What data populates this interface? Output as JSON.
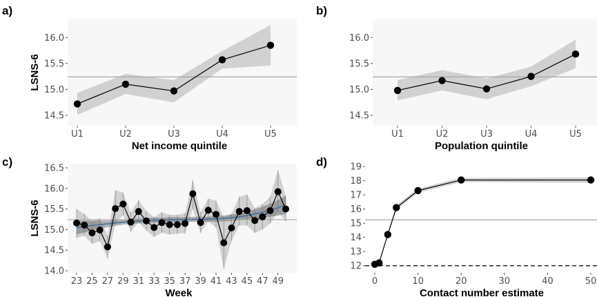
{
  "chart_data": [
    {
      "panel": "a)",
      "type": "line",
      "xlabel": "Net income quintile",
      "ylabel": "LSNS-6",
      "categories": [
        "U1",
        "U2",
        "U3",
        "U4",
        "U5"
      ],
      "values": [
        14.72,
        15.1,
        14.97,
        15.57,
        15.85
      ],
      "ci_lower": [
        14.51,
        14.91,
        14.75,
        15.4,
        15.46
      ],
      "ci_upper": [
        14.93,
        15.3,
        15.18,
        15.74,
        16.24
      ],
      "yticks": [
        14.5,
        15.0,
        15.5,
        16.0
      ],
      "ylim": [
        14.3,
        16.35
      ],
      "reference_line": 15.24
    },
    {
      "panel": "b)",
      "type": "line",
      "xlabel": "Population quintile",
      "ylabel": "",
      "categories": [
        "U1",
        "U2",
        "U3",
        "U4",
        "U5"
      ],
      "values": [
        14.98,
        15.17,
        15.01,
        15.25,
        15.68
      ],
      "ci_lower": [
        14.79,
        14.98,
        14.81,
        15.06,
        15.41
      ],
      "ci_upper": [
        15.18,
        15.37,
        15.21,
        15.44,
        15.96
      ],
      "yticks": [
        14.5,
        15.0,
        15.5,
        16.0
      ],
      "ylim": [
        14.3,
        16.35
      ],
      "reference_line": 15.24
    },
    {
      "panel": "c)",
      "type": "line",
      "xlabel": "Week",
      "ylabel": "LSNS-6",
      "x": [
        23,
        24,
        25,
        26,
        27,
        28,
        29,
        30,
        31,
        32,
        33,
        34,
        35,
        36,
        37,
        38,
        39,
        40,
        41,
        42,
        43,
        44,
        45,
        46,
        47,
        48,
        49,
        50
      ],
      "xticks": [
        23,
        25,
        27,
        29,
        31,
        33,
        35,
        37,
        39,
        41,
        43,
        45,
        47,
        49
      ],
      "values": [
        15.16,
        15.11,
        14.92,
        14.99,
        14.58,
        15.51,
        15.62,
        15.18,
        15.44,
        15.21,
        15.05,
        15.17,
        15.12,
        15.12,
        15.15,
        15.87,
        15.17,
        15.47,
        15.37,
        14.68,
        15.04,
        15.44,
        15.46,
        15.22,
        15.31,
        15.46,
        15.92,
        15.5
      ],
      "ci_lower": [
        14.8,
        14.85,
        14.65,
        14.72,
        14.3,
        15.15,
        15.35,
        14.95,
        15.18,
        14.98,
        14.82,
        14.92,
        14.88,
        14.9,
        14.91,
        15.5,
        14.92,
        15.2,
        15.05,
        14.05,
        14.72,
        15.1,
        15.1,
        14.92,
        15.0,
        15.15,
        15.42,
        15.2
      ],
      "ci_upper": [
        15.5,
        15.38,
        15.2,
        15.28,
        14.86,
        15.95,
        15.9,
        15.42,
        15.72,
        15.45,
        15.3,
        15.42,
        15.36,
        15.36,
        15.4,
        16.2,
        15.42,
        15.75,
        15.7,
        15.3,
        15.38,
        15.8,
        15.85,
        15.52,
        15.62,
        15.8,
        16.45,
        15.82
      ],
      "trend_values": [
        15.05,
        15.07,
        15.1,
        15.12,
        15.14,
        15.16,
        15.18,
        15.2,
        15.21,
        15.22,
        15.23,
        15.23,
        15.24,
        15.24,
        15.24,
        15.25,
        15.25,
        15.25,
        15.26,
        15.27,
        15.29,
        15.31,
        15.34,
        15.38,
        15.42,
        15.47,
        15.53,
        15.6
      ],
      "trend_lower": [
        14.88,
        14.93,
        14.98,
        15.02,
        15.06,
        15.09,
        15.12,
        15.14,
        15.15,
        15.16,
        15.17,
        15.17,
        15.18,
        15.18,
        15.18,
        15.19,
        15.19,
        15.19,
        15.19,
        15.2,
        15.21,
        15.23,
        15.25,
        15.27,
        15.29,
        15.31,
        15.34,
        15.38
      ],
      "trend_upper": [
        15.22,
        15.21,
        15.22,
        15.22,
        15.22,
        15.23,
        15.24,
        15.26,
        15.27,
        15.28,
        15.29,
        15.29,
        15.3,
        15.3,
        15.3,
        15.31,
        15.31,
        15.31,
        15.33,
        15.34,
        15.37,
        15.39,
        15.43,
        15.49,
        15.55,
        15.63,
        15.72,
        15.82
      ],
      "trend_color": "#3a6ea5",
      "yticks": [
        14.0,
        14.5,
        15.0,
        15.5,
        16.0,
        16.5
      ],
      "ylim": [
        13.95,
        16.6
      ],
      "reference_line": 15.24
    },
    {
      "panel": "d)",
      "type": "line",
      "xlabel": "Contact number estimate",
      "ylabel": "",
      "x": [
        0,
        1,
        3,
        5,
        10,
        20,
        50
      ],
      "values": [
        12.1,
        12.2,
        14.2,
        16.1,
        17.3,
        18.05,
        18.05
      ],
      "ci_lower": [
        12.05,
        12.1,
        14.1,
        15.95,
        17.15,
        17.9,
        17.85
      ],
      "ci_upper": [
        12.15,
        12.3,
        14.3,
        16.25,
        17.45,
        18.2,
        18.25
      ],
      "xticks": [
        0,
        10,
        20,
        30,
        40,
        50
      ],
      "yticks": [
        12,
        13,
        14,
        15,
        16,
        17,
        18,
        19
      ],
      "ylim": [
        11.5,
        19.2
      ],
      "xlim": [
        -1.5,
        51.5
      ],
      "reference_line": 15.24,
      "dashed_line": 12.0
    }
  ]
}
